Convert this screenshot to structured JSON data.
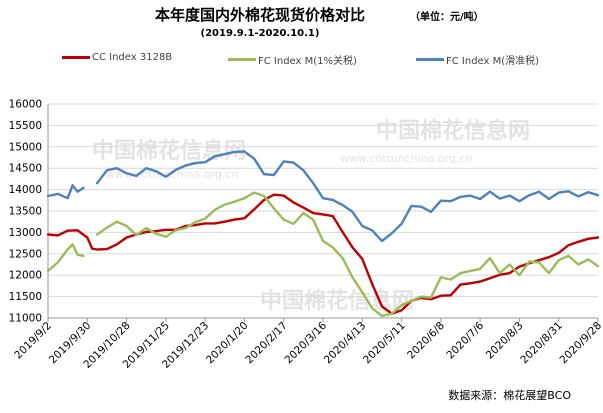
{
  "title": "本年度国内外棉花现货价格对比",
  "unit_note": "（单位：元/吨）",
  "subtitle": "(2019.9.1-2020.10.1)",
  "source": "数据来源：棉花展望BCO",
  "watermark": {
    "text": "中国棉花信息网",
    "url": "www.cottonchina.org.cn"
  },
  "colors": {
    "cc": "#c00000",
    "fc1": "#9bbb59",
    "fcslide": "#4f81bd",
    "grid": "#d9d9d9"
  },
  "chart_data": {
    "type": "line",
    "title": "本年度国内外棉花现货价格对比",
    "subtitle": "(2019.9.1-2020.10.1)",
    "xlabel": "",
    "ylabel": "",
    "ylim": [
      11000,
      16000
    ],
    "yticks": [
      11000,
      11500,
      12000,
      12500,
      13000,
      13500,
      14000,
      14500,
      15000,
      15500,
      16000
    ],
    "grid": true,
    "legend_position": "top",
    "xtick_labels": [
      "2019/9/2",
      "2019/9/30",
      "2019/10/28",
      "2019/11/25",
      "2019/12/23",
      "2020/1/20",
      "2020/2/17",
      "2020/3/16",
      "2020/4/13",
      "2020/5/11",
      "2020/6/8",
      "2020/7/6",
      "2020/8/3",
      "2020/8/31",
      "2020/9/28"
    ],
    "x_count": 57,
    "series": [
      {
        "name": "CC Index 3128B",
        "color": "#c00000",
        "points": [
          [
            0,
            12950
          ],
          [
            1,
            12930
          ],
          [
            2,
            13040
          ],
          [
            3,
            13050
          ],
          [
            4,
            12880
          ],
          [
            4.5,
            12620
          ],
          [
            5,
            12600
          ],
          [
            6,
            12610
          ],
          [
            7,
            12720
          ],
          [
            8,
            12880
          ],
          [
            9,
            12950
          ],
          [
            10,
            13010
          ],
          [
            11,
            13030
          ],
          [
            12,
            13060
          ],
          [
            13,
            13060
          ],
          [
            14,
            13150
          ],
          [
            15,
            13170
          ],
          [
            16,
            13210
          ],
          [
            17,
            13210
          ],
          [
            18,
            13250
          ],
          [
            19,
            13300
          ],
          [
            20,
            13330
          ],
          [
            21,
            13540
          ],
          [
            22,
            13760
          ],
          [
            23,
            13880
          ],
          [
            24,
            13860
          ],
          [
            25,
            13700
          ],
          [
            26,
            13580
          ],
          [
            27,
            13450
          ],
          [
            28,
            13420
          ],
          [
            29,
            13380
          ],
          [
            30,
            13010
          ],
          [
            31,
            12650
          ],
          [
            32,
            12380
          ],
          [
            33,
            11800
          ],
          [
            34,
            11270
          ],
          [
            35,
            11100
          ],
          [
            36,
            11180
          ],
          [
            37,
            11400
          ],
          [
            38,
            11470
          ],
          [
            39,
            11440
          ],
          [
            40,
            11520
          ],
          [
            41,
            11530
          ],
          [
            42,
            11780
          ],
          [
            43,
            11810
          ],
          [
            44,
            11850
          ],
          [
            45,
            11930
          ],
          [
            46,
            12010
          ],
          [
            47,
            12050
          ],
          [
            48,
            12200
          ],
          [
            49,
            12280
          ],
          [
            50,
            12350
          ],
          [
            51,
            12420
          ],
          [
            52,
            12520
          ],
          [
            53,
            12700
          ],
          [
            54,
            12780
          ],
          [
            55,
            12850
          ],
          [
            56,
            12880
          ]
        ]
      },
      {
        "name": "FC Index M(1%关税)",
        "color": "#9bbb59",
        "points": [
          [
            0,
            12100
          ],
          [
            1,
            12300
          ],
          [
            2,
            12600
          ],
          [
            2.5,
            12720
          ],
          [
            3,
            12480
          ],
          [
            3.6,
            12450
          ],
          [
            4.6,
            null
          ],
          [
            5,
            12950
          ],
          [
            6,
            13110
          ],
          [
            7,
            13250
          ],
          [
            8,
            13150
          ],
          [
            9,
            12940
          ],
          [
            10,
            13100
          ],
          [
            11,
            12970
          ],
          [
            12,
            12900
          ],
          [
            13,
            13050
          ],
          [
            14,
            13100
          ],
          [
            15,
            13240
          ],
          [
            16,
            13320
          ],
          [
            17,
            13530
          ],
          [
            18,
            13650
          ],
          [
            19,
            13720
          ],
          [
            20,
            13800
          ],
          [
            21,
            13930
          ],
          [
            22,
            13850
          ],
          [
            23,
            13560
          ],
          [
            24,
            13300
          ],
          [
            25,
            13200
          ],
          [
            26,
            13450
          ],
          [
            27,
            13300
          ],
          [
            28,
            12800
          ],
          [
            29,
            12650
          ],
          [
            30,
            12400
          ],
          [
            31,
            11950
          ],
          [
            32,
            11600
          ],
          [
            33,
            11230
          ],
          [
            34,
            11050
          ],
          [
            35,
            11100
          ],
          [
            36,
            11300
          ],
          [
            37,
            11400
          ],
          [
            38,
            11500
          ],
          [
            39,
            11480
          ],
          [
            40,
            11950
          ],
          [
            41,
            11900
          ],
          [
            42,
            12050
          ],
          [
            43,
            12100
          ],
          [
            44,
            12150
          ],
          [
            45,
            12400
          ],
          [
            46,
            12050
          ],
          [
            47,
            12250
          ],
          [
            48,
            12000
          ],
          [
            49,
            12320
          ],
          [
            50,
            12300
          ],
          [
            51,
            12050
          ],
          [
            52,
            12350
          ],
          [
            53,
            12450
          ],
          [
            54,
            12250
          ],
          [
            55,
            12370
          ],
          [
            56,
            12210
          ]
        ]
      },
      {
        "name": "FC Index M(滑准税)",
        "color": "#4f81bd",
        "points": [
          [
            0,
            13850
          ],
          [
            1,
            13900
          ],
          [
            2,
            13800
          ],
          [
            2.5,
            14100
          ],
          [
            3,
            13950
          ],
          [
            3.6,
            14040
          ],
          [
            4.6,
            null
          ],
          [
            5,
            14150
          ],
          [
            6,
            14450
          ],
          [
            7,
            14500
          ],
          [
            8,
            14380
          ],
          [
            9,
            14320
          ],
          [
            10,
            14500
          ],
          [
            11,
            14430
          ],
          [
            12,
            14300
          ],
          [
            13,
            14460
          ],
          [
            14,
            14560
          ],
          [
            15,
            14620
          ],
          [
            16,
            14640
          ],
          [
            17,
            14780
          ],
          [
            18,
            14830
          ],
          [
            19,
            14880
          ],
          [
            20,
            14890
          ],
          [
            21,
            14720
          ],
          [
            22,
            14360
          ],
          [
            23,
            14340
          ],
          [
            24,
            14660
          ],
          [
            25,
            14630
          ],
          [
            26,
            14450
          ],
          [
            27,
            14150
          ],
          [
            28,
            13800
          ],
          [
            29,
            13760
          ],
          [
            30,
            13640
          ],
          [
            31,
            13480
          ],
          [
            32,
            13150
          ],
          [
            33,
            13050
          ],
          [
            34,
            12800
          ],
          [
            35,
            12980
          ],
          [
            36,
            13200
          ],
          [
            37,
            13620
          ],
          [
            38,
            13600
          ],
          [
            39,
            13480
          ],
          [
            40,
            13740
          ],
          [
            41,
            13730
          ],
          [
            42,
            13830
          ],
          [
            43,
            13860
          ],
          [
            44,
            13780
          ],
          [
            45,
            13950
          ],
          [
            46,
            13790
          ],
          [
            47,
            13860
          ],
          [
            48,
            13730
          ],
          [
            49,
            13870
          ],
          [
            50,
            13950
          ],
          [
            51,
            13780
          ],
          [
            52,
            13930
          ],
          [
            53,
            13960
          ],
          [
            54,
            13840
          ],
          [
            55,
            13940
          ],
          [
            56,
            13870
          ]
        ]
      }
    ]
  }
}
